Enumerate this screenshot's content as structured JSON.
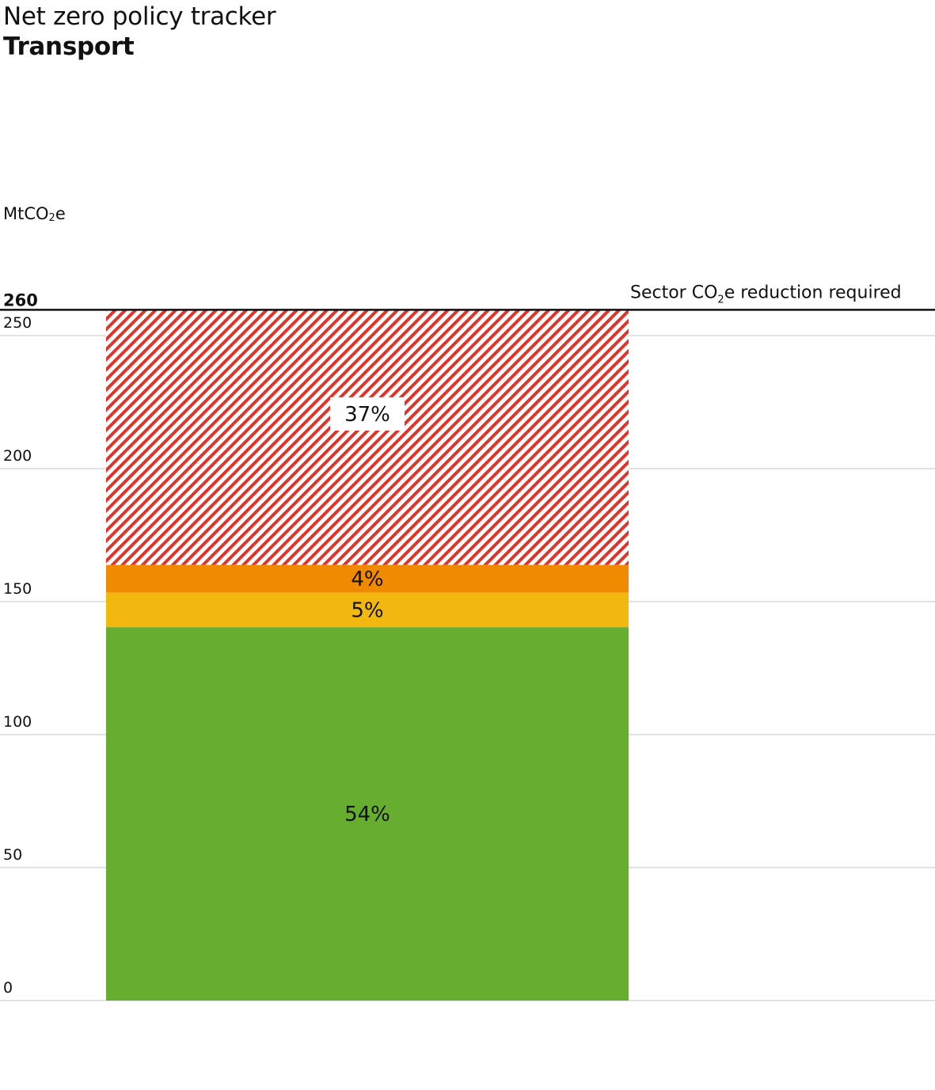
{
  "header": {
    "title": "Net zero policy tracker",
    "subtitle": "Transport"
  },
  "axis": {
    "unit_prefix": "MtCO",
    "unit_sub": "2",
    "unit_suffix": "e"
  },
  "reference": {
    "label_prefix": "Sector CO",
    "label_sub": "2",
    "label_suffix": "e reduction required"
  },
  "colors": {
    "green": "#67ad2f",
    "yellow": "#f2b80f",
    "orange": "#f08a00",
    "red_hatch": "#e0342a",
    "gridline": "#d9d9d9",
    "reference_line": "#111111"
  },
  "chart_data": {
    "type": "bar",
    "stacked": true,
    "title": "Net zero policy tracker",
    "subtitle": "Transport",
    "ylabel": "MtCO2e",
    "xlabel": "",
    "ylim": [
      0,
      260
    ],
    "yticks": [
      0,
      50,
      100,
      150,
      200,
      250
    ],
    "reference_line": {
      "value": 260,
      "label": "260",
      "description": "Sector CO2e reduction required"
    },
    "series": [
      {
        "name": "green",
        "value": 140.4,
        "percent_label": "54%",
        "color": "#67ad2f",
        "pattern": "solid"
      },
      {
        "name": "yellow",
        "value": 13.0,
        "percent_label": "5%",
        "color": "#f2b80f",
        "pattern": "solid"
      },
      {
        "name": "orange",
        "value": 10.4,
        "percent_label": "4%",
        "color": "#f08a00",
        "pattern": "solid"
      },
      {
        "name": "red-hatched",
        "value": 96.2,
        "percent_label": "37%",
        "color": "#e0342a",
        "pattern": "hatched"
      }
    ]
  }
}
